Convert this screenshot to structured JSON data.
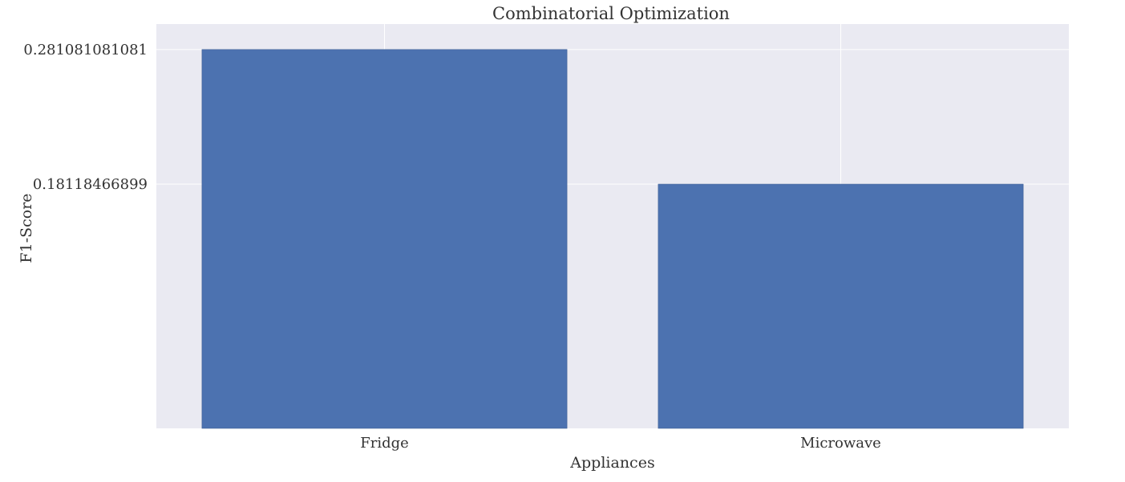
{
  "chart_data": {
    "type": "bar",
    "title": "Combinatorial Optimization",
    "xlabel": "Appliances",
    "ylabel": "F1-Score",
    "categories": [
      "Fridge",
      "Microwave"
    ],
    "values": [
      0.281081081081,
      0.18118466899
    ],
    "ytick_labels": [
      "0.281081081081",
      "0.18118466899"
    ],
    "ylim": [
      0,
      0.3
    ],
    "grid": true,
    "legend": "none",
    "colors": {
      "bar": "#4c72b0",
      "plot_background": "#eaeaf2",
      "grid": "#ffffff"
    }
  }
}
